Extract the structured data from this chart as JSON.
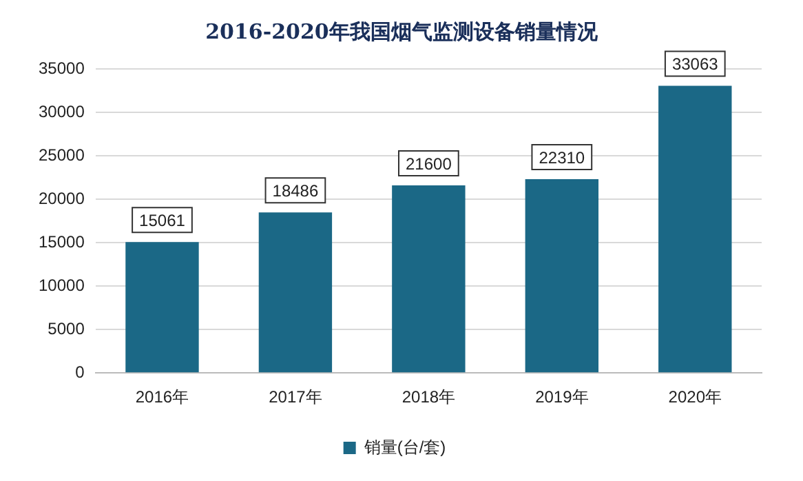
{
  "chart_data": {
    "type": "bar",
    "title": "2016-2020年我国烟气监测设备销量情况",
    "categories": [
      "2016年",
      "2017年",
      "2018年",
      "2019年",
      "2020年"
    ],
    "series": [
      {
        "name": "销量(台/套)",
        "color": "#1b6886",
        "values": [
          15061,
          18486,
          21600,
          22310,
          33063
        ]
      }
    ],
    "ylim": [
      0,
      35000
    ],
    "yticks": [
      0,
      5000,
      10000,
      15000,
      20000,
      25000,
      30000,
      35000
    ],
    "grid": "y",
    "legend": "bottom",
    "data_labels": true
  }
}
